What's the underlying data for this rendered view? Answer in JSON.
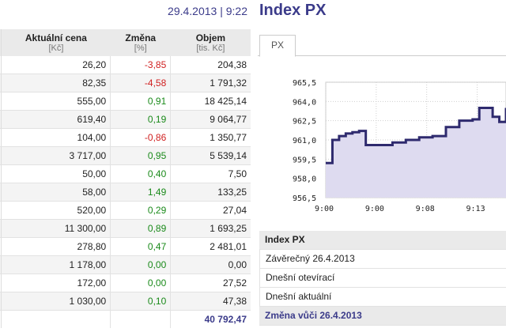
{
  "header": {
    "date": "29.4.2013",
    "time": "9:22"
  },
  "table": {
    "columns": [
      {
        "label": "Aktuální cena",
        "unit": "[Kč]"
      },
      {
        "label": "Změna",
        "unit": "[%]"
      },
      {
        "label": "Objem",
        "unit": "[tis. Kč]"
      }
    ],
    "rows": [
      {
        "price": "26,20",
        "change": "-3,85",
        "volume": "204,38",
        "dir": "neg"
      },
      {
        "price": "82,35",
        "change": "-4,58",
        "volume": "1 791,32",
        "dir": "neg"
      },
      {
        "price": "555,00",
        "change": "0,91",
        "volume": "18 425,14",
        "dir": "pos"
      },
      {
        "price": "619,40",
        "change": "0,19",
        "volume": "9 064,77",
        "dir": "pos"
      },
      {
        "price": "104,00",
        "change": "-0,86",
        "volume": "1 350,77",
        "dir": "neg"
      },
      {
        "price": "3 717,00",
        "change": "0,95",
        "volume": "5 539,14",
        "dir": "pos"
      },
      {
        "price": "50,00",
        "change": "0,40",
        "volume": "7,50",
        "dir": "pos"
      },
      {
        "price": "58,00",
        "change": "1,49",
        "volume": "133,25",
        "dir": "pos"
      },
      {
        "price": "520,00",
        "change": "0,29",
        "volume": "27,04",
        "dir": "pos"
      },
      {
        "price": "11 300,00",
        "change": "0,89",
        "volume": "1 693,25",
        "dir": "pos"
      },
      {
        "price": "278,80",
        "change": "0,47",
        "volume": "2 481,01",
        "dir": "pos"
      },
      {
        "price": "1 178,00",
        "change": "0,00",
        "volume": "0,00",
        "dir": "pos"
      },
      {
        "price": "172,00",
        "change": "0,00",
        "volume": "27,52",
        "dir": "pos"
      },
      {
        "price": "1 030,00",
        "change": "0,10",
        "volume": "47,38",
        "dir": "pos"
      }
    ],
    "total_volume": "40 792,47"
  },
  "index_panel": {
    "title": "Index PX",
    "tab_label": "PX",
    "info_header": "Index PX",
    "info_rows": [
      "Závěrečný 26.4.2013",
      "Dnešní otevírací",
      "Dnešní aktuální"
    ],
    "info_footer": "Změna vůči 26.4.2013"
  },
  "chart_data": {
    "type": "area",
    "y_ticks": [
      "965,5",
      "964,0",
      "962,5",
      "961,0",
      "959,5",
      "958,0",
      "956,5"
    ],
    "ylim": [
      956.5,
      965.5
    ],
    "x_ticks": [
      "9:00",
      "9:00",
      "9:08",
      "9:13"
    ],
    "x": [
      0,
      1,
      2,
      3,
      4,
      5,
      6,
      7,
      8,
      9,
      10,
      11,
      12,
      13,
      14,
      15,
      16,
      17,
      18,
      19,
      20,
      21,
      22,
      23,
      24,
      25,
      26,
      27
    ],
    "values": [
      959.2,
      961.0,
      961.3,
      961.5,
      961.6,
      961.7,
      960.6,
      960.6,
      960.6,
      960.6,
      960.8,
      960.8,
      961.0,
      961.0,
      961.2,
      961.2,
      961.3,
      961.3,
      962.0,
      962.0,
      962.5,
      962.5,
      962.6,
      963.5,
      963.5,
      962.8,
      962.4,
      963.5
    ],
    "grid": true,
    "line_color": "#2e2a6e",
    "fill_color": "#dedbf0"
  }
}
